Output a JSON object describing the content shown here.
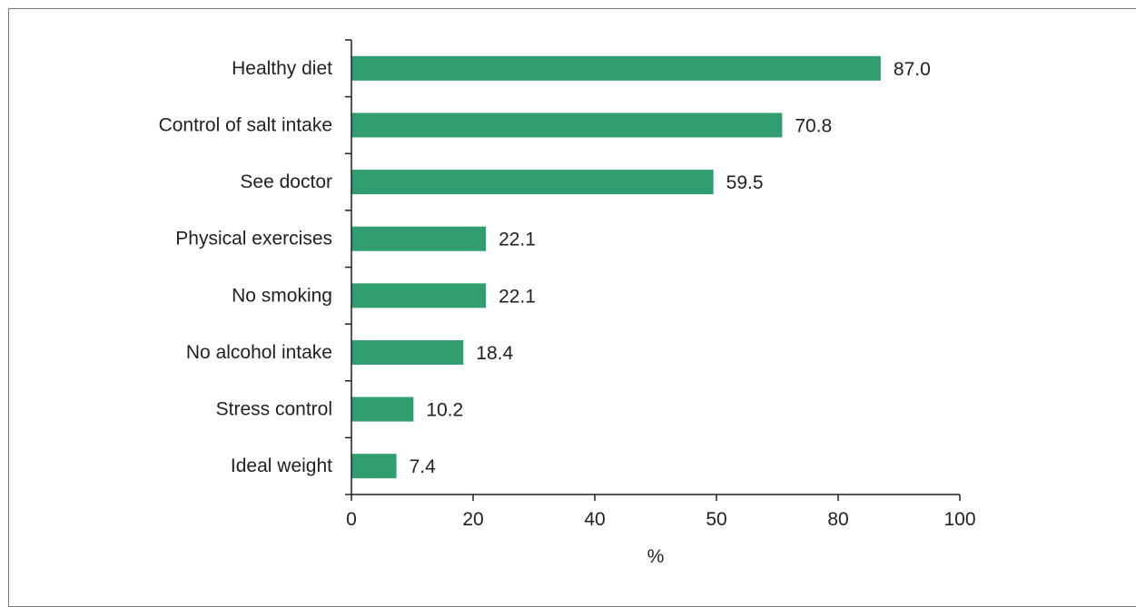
{
  "chart_data": {
    "type": "bar",
    "orientation": "horizontal",
    "title": "",
    "xlabel": "%",
    "ylabel": "",
    "xlim": [
      0,
      100
    ],
    "xticks": [
      "0",
      "20",
      "40",
      "50",
      "80",
      "100"
    ],
    "grid": false,
    "legend": "none",
    "categories": [
      "Healthy diet",
      "Control of salt intake",
      "See doctor",
      "Physical exercises",
      "No smoking",
      "No alcohol intake",
      "Stress control",
      "Ideal weight"
    ],
    "values": [
      87.0,
      70.8,
      59.5,
      22.1,
      22.1,
      18.4,
      10.2,
      7.4
    ],
    "value_labels": [
      "87.0",
      "70.8",
      "59.5",
      "22.1",
      "22.1",
      "18.4",
      "10.2",
      "7.4"
    ],
    "bar_color": "#319e71",
    "axis_color": "#231f20"
  }
}
